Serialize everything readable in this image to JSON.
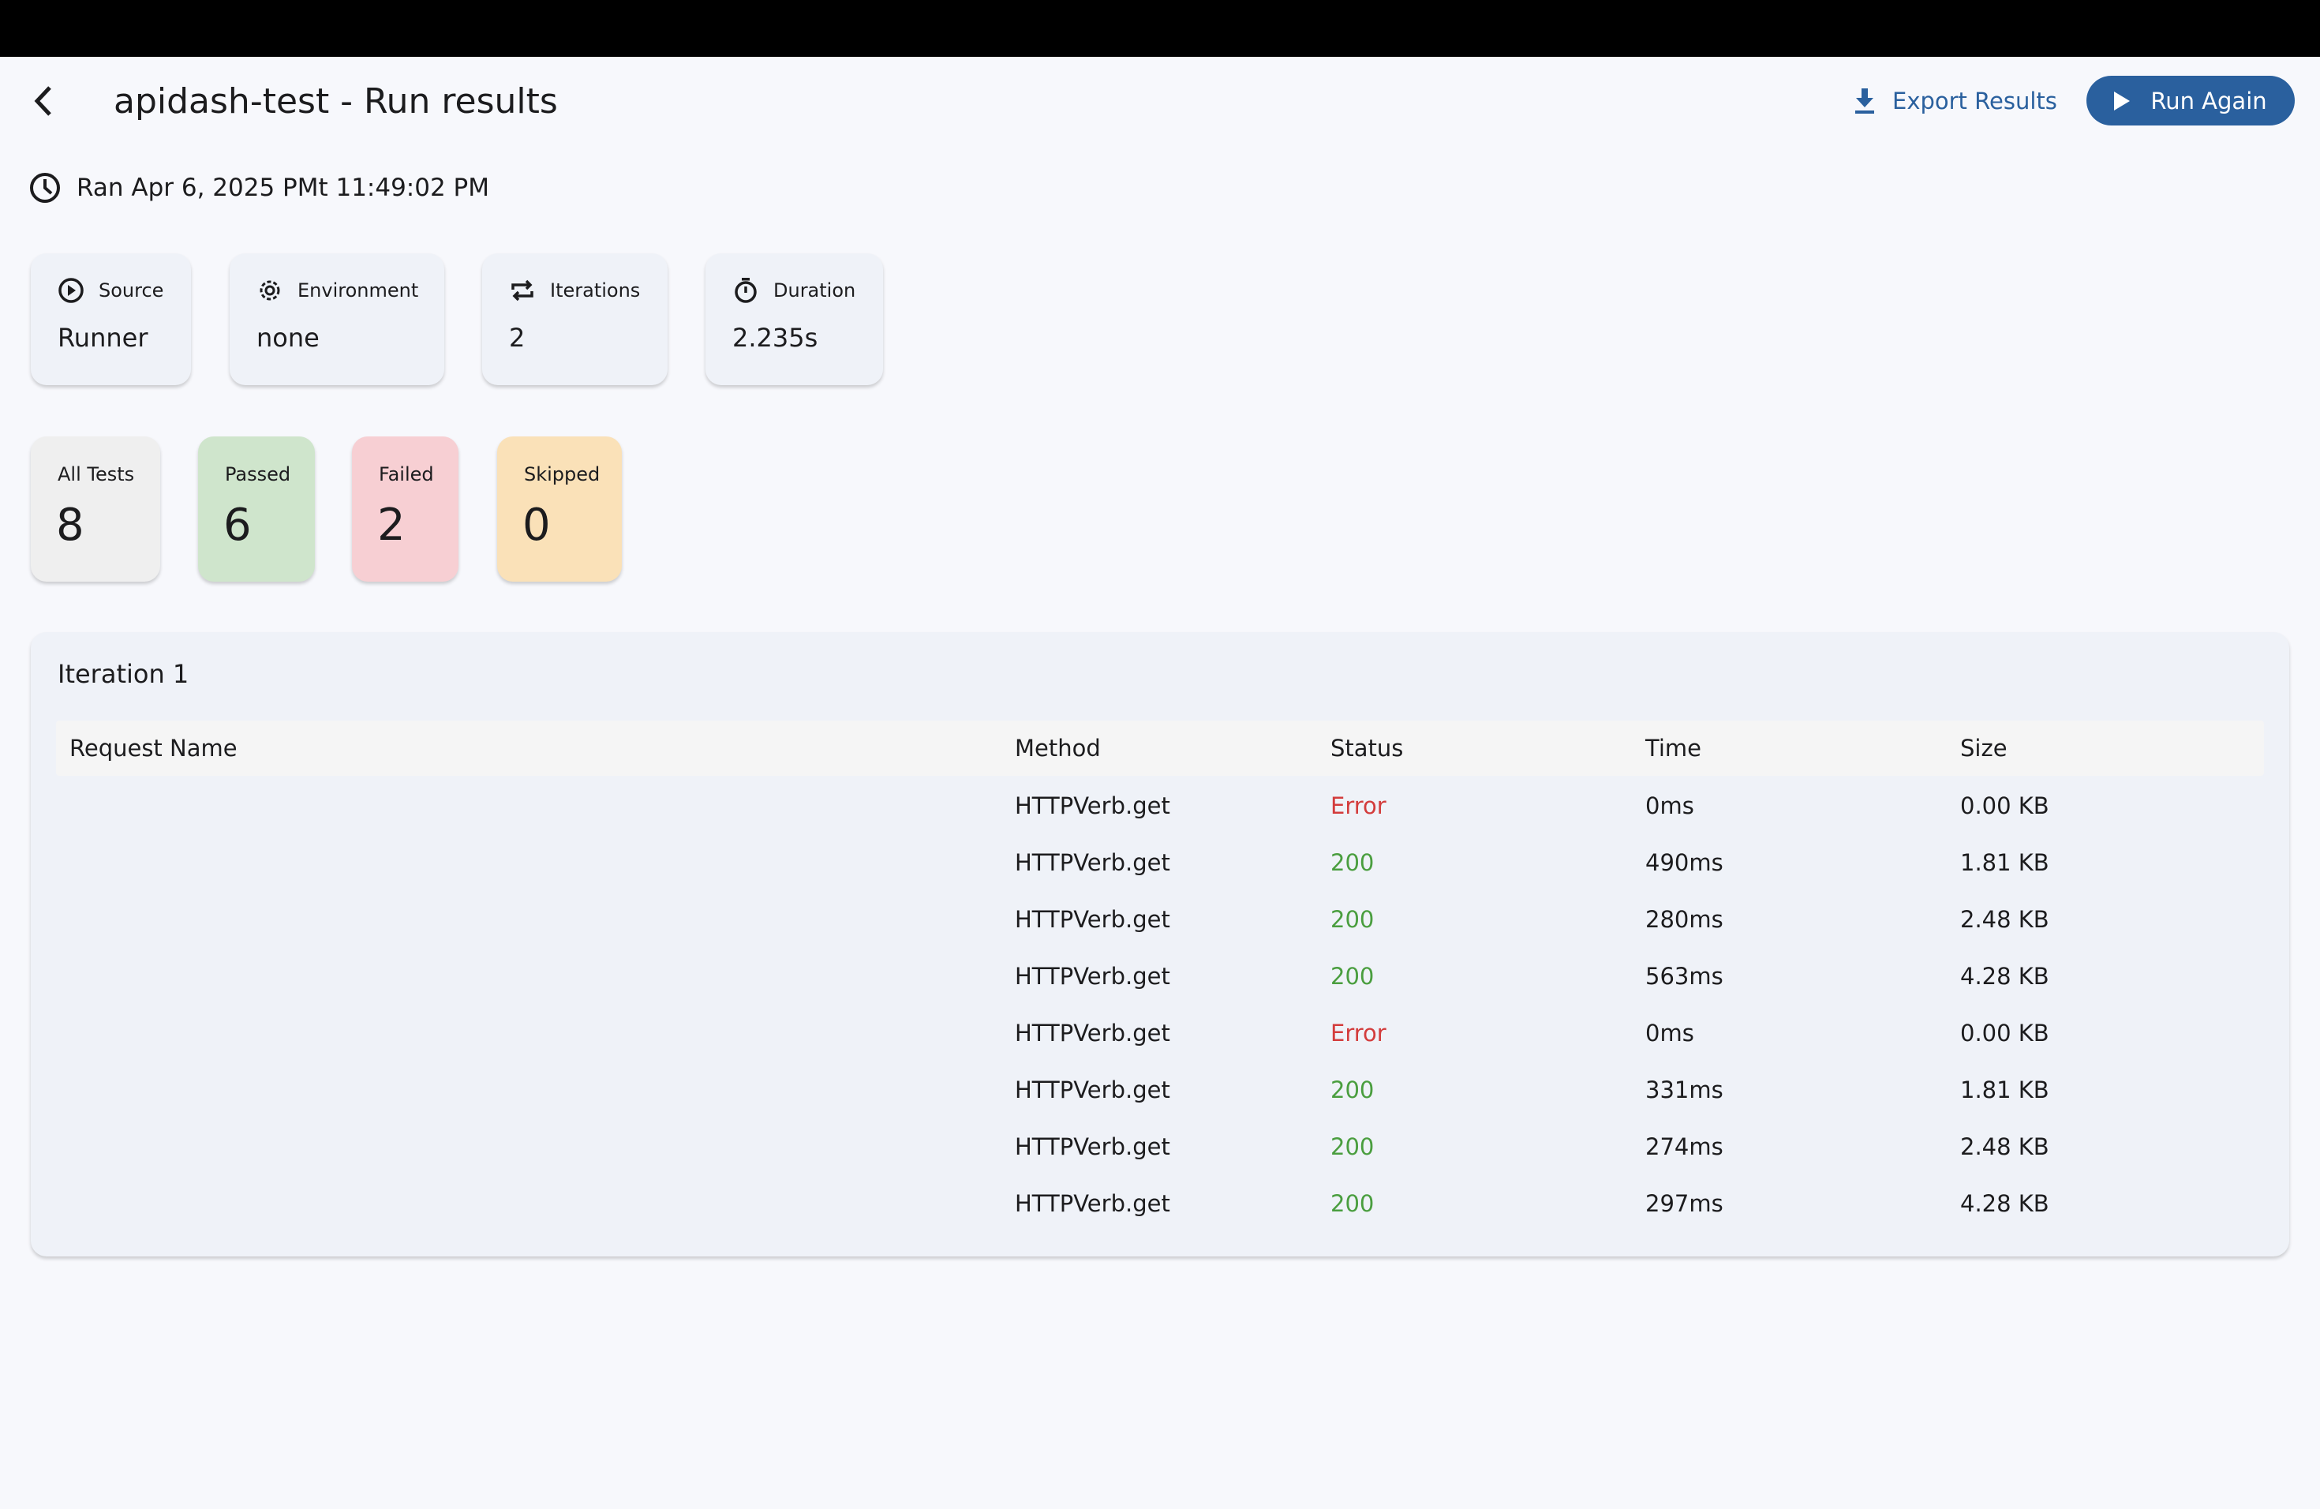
{
  "header": {
    "title": "apidash-test - Run results",
    "export_label": "Export Results",
    "run_again_label": "Run Again"
  },
  "run_info": {
    "ran_text": "Ran Apr 6, 2025 PMt 11:49:02 PM"
  },
  "info_cards": [
    {
      "icon": "play-circle-icon",
      "label": "Source",
      "value": "Runner"
    },
    {
      "icon": "gear-icon",
      "label": "Environment",
      "value": "none"
    },
    {
      "icon": "repeat-icon",
      "label": "Iterations",
      "value": "2"
    },
    {
      "icon": "stopwatch-icon",
      "label": "Duration",
      "value": "2.235s"
    }
  ],
  "stats": [
    {
      "label": "All Tests",
      "value": "8",
      "color": "#efefef"
    },
    {
      "label": "Passed",
      "value": "6",
      "color": "#cfe5cc"
    },
    {
      "label": "Failed",
      "value": "2",
      "color": "#f7cfd3"
    },
    {
      "label": "Skipped",
      "value": "0",
      "color": "#fae1b8"
    }
  ],
  "colors": {
    "accent": "#2a609e",
    "error": "#d33c3c",
    "success": "#4a9e3f"
  },
  "iteration": {
    "title": "Iteration 1",
    "columns": [
      "Request Name",
      "Method",
      "Status",
      "Time",
      "Size"
    ],
    "rows": [
      {
        "name": "",
        "method": "HTTPVerb.get",
        "status": "Error",
        "time": "0ms",
        "size": "0.00 KB"
      },
      {
        "name": "",
        "method": "HTTPVerb.get",
        "status": "200",
        "time": "490ms",
        "size": "1.81 KB"
      },
      {
        "name": "",
        "method": "HTTPVerb.get",
        "status": "200",
        "time": "280ms",
        "size": "2.48 KB"
      },
      {
        "name": "",
        "method": "HTTPVerb.get",
        "status": "200",
        "time": "563ms",
        "size": "4.28 KB"
      },
      {
        "name": "",
        "method": "HTTPVerb.get",
        "status": "Error",
        "time": "0ms",
        "size": "0.00 KB"
      },
      {
        "name": "",
        "method": "HTTPVerb.get",
        "status": "200",
        "time": "331ms",
        "size": "1.81 KB"
      },
      {
        "name": "",
        "method": "HTTPVerb.get",
        "status": "200",
        "time": "274ms",
        "size": "2.48 KB"
      },
      {
        "name": "",
        "method": "HTTPVerb.get",
        "status": "200",
        "time": "297ms",
        "size": "4.28 KB"
      }
    ]
  }
}
